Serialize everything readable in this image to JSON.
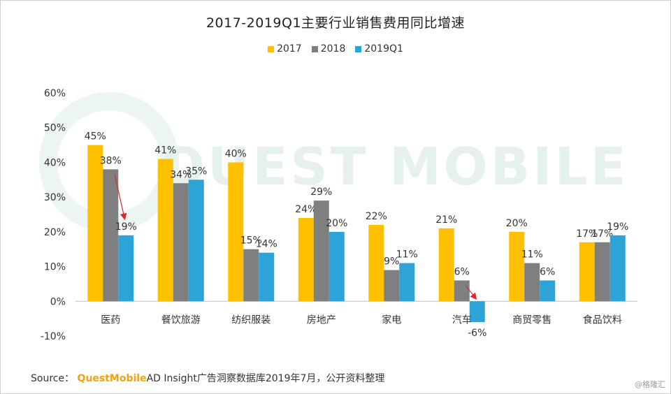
{
  "title": "2017-2019Q1主要行业销售费用同比增速",
  "watermark": "QUEST MOBILE",
  "source": {
    "prefix": "Source：",
    "brand": "QuestMobile",
    "text": "AD Insight广告洞察数据库2019年7月，公开资料整理"
  },
  "corner_mark": "@格隆汇",
  "chart_data": {
    "type": "bar",
    "title": "2017-2019Q1主要行业销售费用同比增速",
    "categories": [
      "医药",
      "餐饮旅游",
      "纺织服装",
      "房地产",
      "家电",
      "汽车",
      "商贸零售",
      "食品饮料"
    ],
    "series": [
      {
        "name": "2017",
        "color": "#ffc000",
        "values": [
          45,
          41,
          40,
          24,
          22,
          21,
          20,
          17
        ]
      },
      {
        "name": "2018",
        "color": "#7f7f7f",
        "values": [
          38,
          34,
          15,
          29,
          9,
          6,
          11,
          17
        ]
      },
      {
        "name": "2019Q1",
        "color": "#2ea3d8",
        "values": [
          19,
          35,
          14,
          20,
          11,
          -6,
          6,
          19
        ]
      }
    ],
    "yticks": [
      "-10%",
      "0%",
      "10%",
      "20%",
      "30%",
      "40%",
      "50%",
      "60%"
    ],
    "ylim": [
      -10,
      60
    ],
    "value_suffix": "%",
    "legend_position": "top-center",
    "grid": false,
    "arrow_color": "#e0262b"
  }
}
